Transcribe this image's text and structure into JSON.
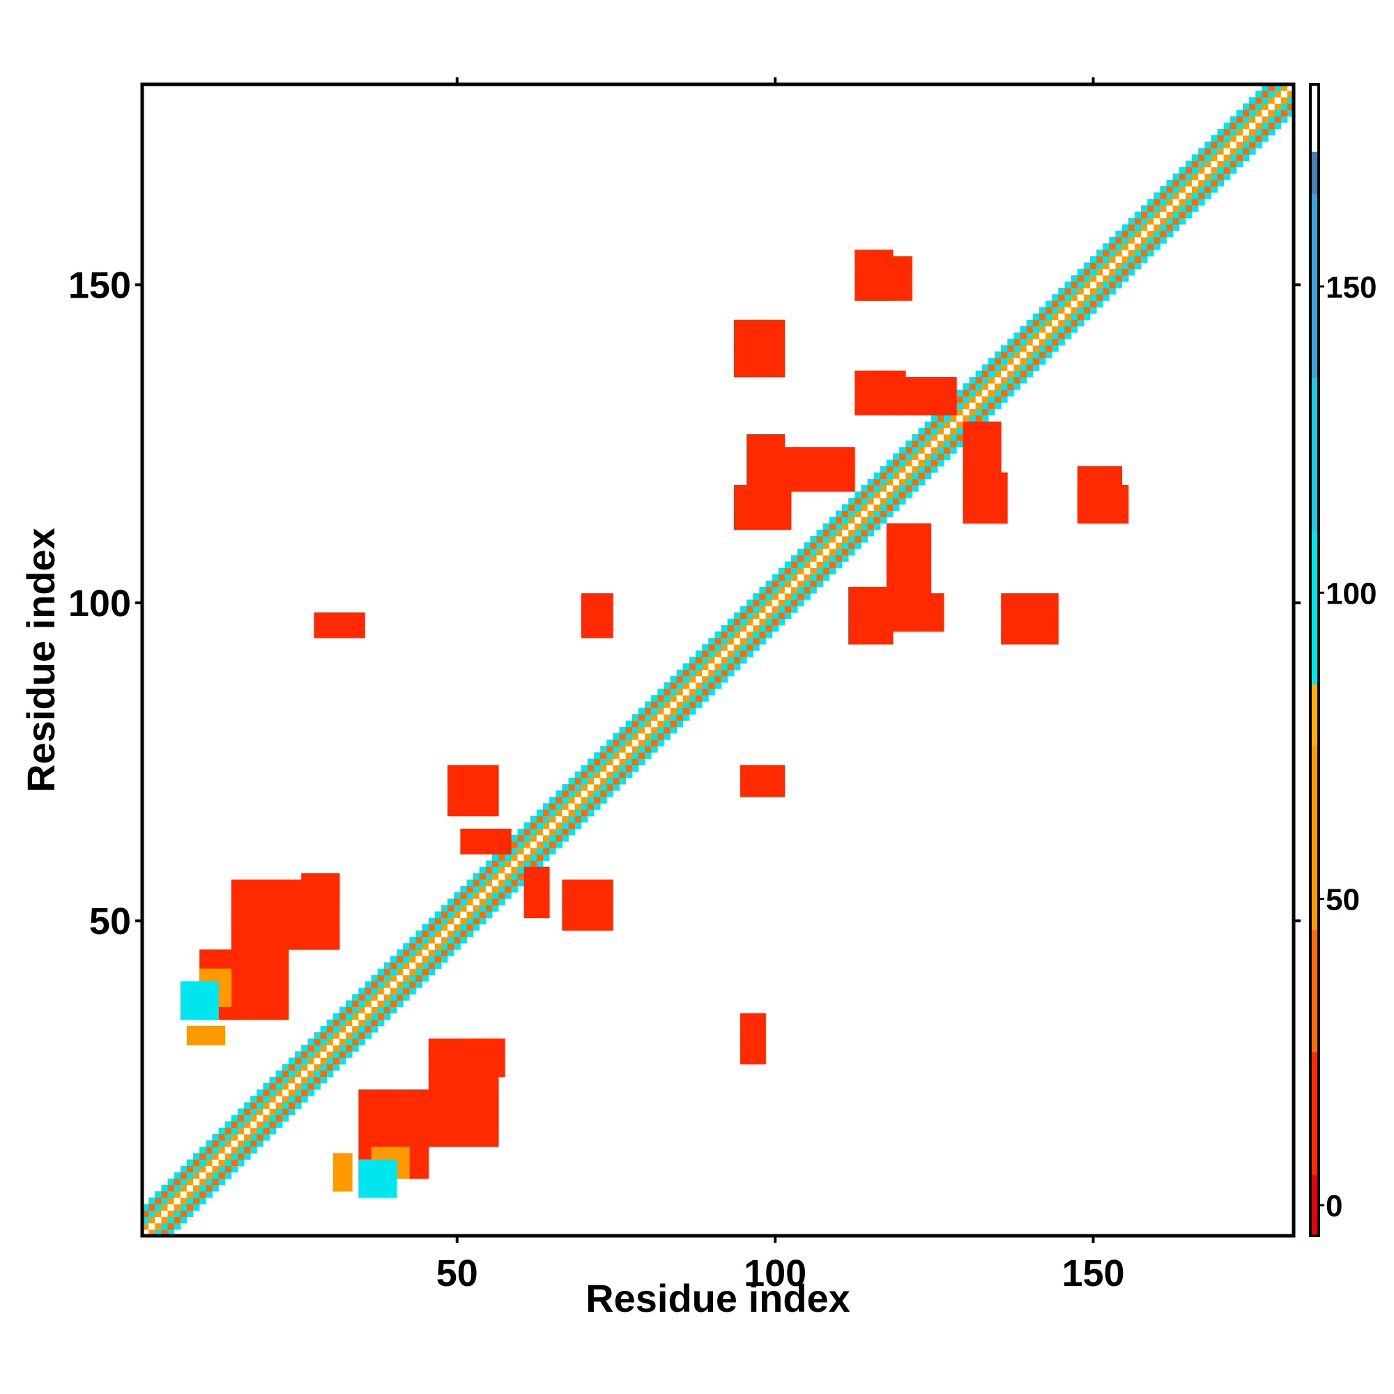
{
  "chart_data": {
    "type": "heatmap",
    "title": "",
    "xlabel": "Residue index",
    "ylabel": "Residue index",
    "xlim": [
      1,
      181
    ],
    "ylim": [
      1,
      181
    ],
    "x_ticks": [
      50,
      100,
      150
    ],
    "y_ticks": [
      50,
      100,
      150
    ],
    "x_tick_labels": [
      "50",
      "100",
      "150"
    ],
    "y_tick_labels": [
      "50",
      "100",
      "150"
    ],
    "colorbar": {
      "range": [
        -5,
        183
      ],
      "ticks": [
        0,
        50,
        100,
        150
      ],
      "tick_labels": [
        "0",
        "50",
        "100",
        "150"
      ],
      "bands": [
        {
          "from": -5,
          "to": 5,
          "color": "#e8000b"
        },
        {
          "from": 5,
          "to": 25,
          "color": "#ff2a00"
        },
        {
          "from": 25,
          "to": 45,
          "color": "#ff6a00"
        },
        {
          "from": 45,
          "to": 75,
          "color": "#ff9900"
        },
        {
          "from": 75,
          "to": 85,
          "color": "#ffb000"
        },
        {
          "from": 85,
          "to": 110,
          "color": "#00e5ee"
        },
        {
          "from": 110,
          "to": 135,
          "color": "#20c8e8"
        },
        {
          "from": 135,
          "to": 165,
          "color": "#3aa3d8"
        },
        {
          "from": 165,
          "to": 172,
          "color": "#4a80b8"
        },
        {
          "from": 172,
          "to": 183,
          "color": "#ffffff"
        }
      ]
    },
    "diagonal": {
      "from": 1,
      "to": 181,
      "halfwidth": 4
    },
    "contact_blobs": [
      {
        "i": [
          31,
          33
        ],
        "j": [
          8,
          13
        ],
        "value": 60
      },
      {
        "i": [
          35,
          45
        ],
        "j": [
          10,
          23
        ],
        "value": 15
      },
      {
        "i": [
          46,
          56
        ],
        "j": [
          15,
          31
        ],
        "value": 10
      },
      {
        "i": [
          53,
          57
        ],
        "j": [
          26,
          31
        ],
        "value": 8
      },
      {
        "i": [
          67,
          74
        ],
        "j": [
          49,
          56
        ],
        "value": 10
      },
      {
        "i": [
          61,
          64
        ],
        "j": [
          51,
          58
        ],
        "value": 8
      },
      {
        "i": [
          112,
          118
        ],
        "j": [
          94,
          102
        ],
        "value": 8
      },
      {
        "i": [
          118,
          124
        ],
        "j": [
          102,
          112
        ],
        "value": 8
      },
      {
        "i": [
          120,
          128
        ],
        "j": [
          130,
          135
        ],
        "value": 10
      },
      {
        "i": [
          94,
          101
        ],
        "j": [
          136,
          144
        ],
        "value": 10
      },
      {
        "i": [
          95,
          98
        ],
        "j": [
          28,
          35
        ],
        "value": 8
      },
      {
        "i": [
          70,
          74
        ],
        "j": [
          95,
          101
        ],
        "value": 8
      },
      {
        "i": [
          10,
          14
        ],
        "j": [
          37,
          42
        ],
        "value": 60
      },
      {
        "i": [
          7,
          12
        ],
        "j": [
          35,
          40
        ],
        "value": 100
      },
      {
        "i": [
          148,
          154
        ],
        "j": [
          114,
          121
        ],
        "value": 10
      },
      {
        "i": [
          113,
          118
        ],
        "j": [
          148,
          155
        ],
        "value": 8
      },
      {
        "i": [
          96,
          101
        ],
        "j": [
          117,
          126
        ],
        "value": 8
      },
      {
        "i": [
          130,
          136
        ],
        "j": [
          113,
          120
        ],
        "value": 8
      }
    ]
  }
}
